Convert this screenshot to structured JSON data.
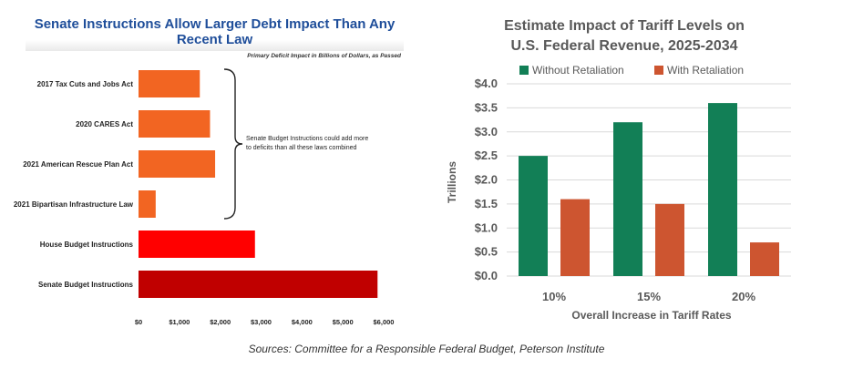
{
  "left_chart": {
    "title": "Senate Instructions Allow Larger Debt Impact Than Any Recent Law",
    "subtitle": "Primary Deficit Impact in Billions of Dollars, as Passed",
    "annotation_line1": "Senate Budget Instructions could add more",
    "annotation_line2": "to deficits than all these laws combined"
  },
  "right_chart": {
    "title_line1": "Estimate Impact of Tariff Levels on",
    "title_line2": "U.S. Federal Revenue, 2025-2034"
  },
  "source": "Sources: Committee for a Responsible Federal Budget, Peterson Institute",
  "colors": {
    "law_bar": "#f26522",
    "house_bar": "#ff0000",
    "senate_bar": "#c00000",
    "without_retaliation": "#127f56",
    "with_retaliation": "#cd5530"
  },
  "chart_data": [
    {
      "type": "bar",
      "orientation": "horizontal",
      "title": "Senate Instructions Allow Larger Debt Impact Than Any Recent Law",
      "subtitle": "Primary Deficit Impact in Billions of Dollars, as Passed",
      "categories": [
        "2017 Tax Cuts and Jobs Act",
        "2020 CARES Act",
        "2021 American Rescue Plan Act",
        "2021 Bipartisan Infrastructure Law",
        "House Budget Instructions",
        "Senate Budget Instructions"
      ],
      "values": [
        1500,
        1750,
        1875,
        420,
        2850,
        5850
      ],
      "bar_colors": [
        "#f26522",
        "#f26522",
        "#f26522",
        "#f26522",
        "#ff0000",
        "#c00000"
      ],
      "xlim": [
        0,
        6000
      ],
      "xticks": [
        0,
        1000,
        2000,
        3000,
        4000,
        5000,
        6000
      ],
      "xtick_labels": [
        "$0",
        "$1,000",
        "$2,000",
        "$3,000",
        "$4,000",
        "$5,000",
        "$6,000"
      ],
      "grid": false,
      "annotation": "Senate Budget Instructions could add more to deficits than all these laws combined"
    },
    {
      "type": "bar",
      "title": "Estimate Impact of Tariff Levels on U.S. Federal Revenue, 2025-2034",
      "categories": [
        "10%",
        "15%",
        "20%"
      ],
      "series": [
        {
          "name": "Without Retaliation",
          "values": [
            2.5,
            3.2,
            3.6
          ],
          "color": "#127f56"
        },
        {
          "name": "With Retaliation",
          "values": [
            1.6,
            1.5,
            0.7
          ],
          "color": "#cd5530"
        }
      ],
      "xlabel": "Overall Increase in Tariff Rates",
      "ylabel": "Trillions",
      "ylim": [
        0,
        4.0
      ],
      "yticks": [
        0,
        0.5,
        1.0,
        1.5,
        2.0,
        2.5,
        3.0,
        3.5,
        4.0
      ],
      "ytick_labels": [
        "$0.0",
        "$0.5",
        "$1.0",
        "$1.5",
        "$2.0",
        "$2.5",
        "$3.0",
        "$3.5",
        "$4.0"
      ],
      "grid": true,
      "legend": "top-left"
    }
  ]
}
